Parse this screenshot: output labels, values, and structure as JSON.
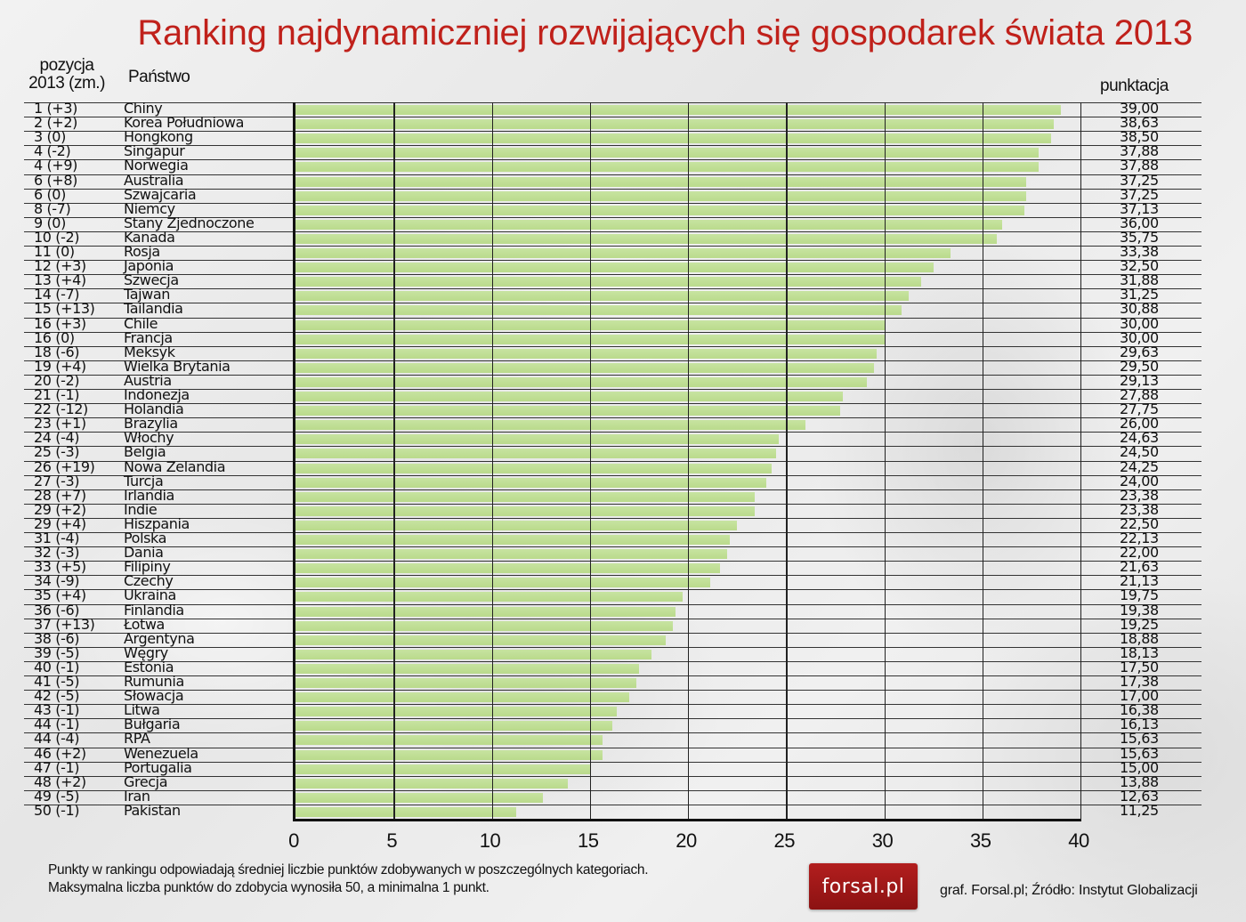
{
  "title": "Ranking najdynamiczniej rozwijających się gospodarek świata 2013",
  "headers": {
    "position_line1": "pozycja",
    "position_line2": "2013 (zm.)",
    "country": "Państwo",
    "score": "punktacja"
  },
  "colors": {
    "title": "#c0211b",
    "bar": "#bcdd8c",
    "logo_bg": "#a01818"
  },
  "chart_data": {
    "type": "bar",
    "orientation": "horizontal",
    "title": "Ranking najdynamiczniej rozwijających się gospodarek świata 2013",
    "xlabel": "",
    "ylabel": "Państwo",
    "xlim": [
      0,
      40
    ],
    "xticks": [
      0,
      5,
      10,
      15,
      20,
      25,
      30,
      35,
      40
    ],
    "grid": true,
    "legend": null,
    "categories": [
      "Chiny",
      "Korea Południowa",
      "Hongkong",
      "Singapur",
      "Norwegia",
      "Australia",
      "Szwajcaria",
      "Niemcy",
      "Stany Zjednoczone",
      "Kanada",
      "Rosja",
      "Japonia",
      "Szwecja",
      "Tajwan",
      "Tailandia",
      "Chile",
      "Francja",
      "Meksyk",
      "Wielka Brytania",
      "Austria",
      "Indonezja",
      "Holandia",
      "Brazylia",
      "Włochy",
      "Belgia",
      "Nowa Zelandia",
      "Turcja",
      "Irlandia",
      "Indie",
      "Hiszpania",
      "Polska",
      "Dania",
      "Filipiny",
      "Czechy",
      "Ukraina",
      "Finlandia",
      "Łotwa",
      "Argentyna",
      "Węgry",
      "Estonia",
      "Rumunia",
      "Słowacja",
      "Litwa",
      "Bułgaria",
      "RPA",
      "Wenezuela",
      "Portugalia",
      "Grecja",
      "Iran",
      "Pakistan"
    ],
    "values": [
      39.0,
      38.63,
      38.5,
      37.88,
      37.88,
      37.25,
      37.25,
      37.13,
      36.0,
      35.75,
      33.38,
      32.5,
      31.88,
      31.25,
      30.88,
      30.0,
      30.0,
      29.63,
      29.5,
      29.13,
      27.88,
      27.75,
      26.0,
      24.63,
      24.5,
      24.25,
      24.0,
      23.38,
      23.38,
      22.5,
      22.13,
      22.0,
      21.63,
      21.13,
      19.75,
      19.38,
      19.25,
      18.88,
      18.13,
      17.5,
      17.38,
      17.0,
      16.38,
      16.13,
      15.63,
      15.63,
      15.0,
      13.88,
      12.63,
      11.25
    ],
    "positions": [
      "1 (+3)",
      "2 (+2)",
      "3 (0)",
      "4 (-2)",
      "4 (+9)",
      "6 (+8)",
      "6 (0)",
      "8 (-7)",
      "9 (0)",
      "10 (-2)",
      "11 (0)",
      "12 (+3)",
      "13 (+4)",
      "14 (-7)",
      "15 (+13)",
      "16 (+3)",
      "16 (0)",
      "18 (-6)",
      "19 (+4)",
      "20 (-2)",
      "21 (-1)",
      "22 (-12)",
      "23 (+1)",
      "24 (-4)",
      "25 (-3)",
      "26 (+19)",
      "27 (-3)",
      "28 (+7)",
      "29 (+2)",
      "29 (+4)",
      "31 (-4)",
      "32 (-3)",
      "33 (+5)",
      "34 (-9)",
      "35 (+4)",
      "36 (-6)",
      "37 (+13)",
      "38 (-6)",
      "39 (-5)",
      "40 (-1)",
      "41 (-5)",
      "42 (-5)",
      "43 (-1)",
      "44 (-1)",
      "44 (-4)",
      "46 (+2)",
      "47 (-1)",
      "48 (+2)",
      "49 (-5)",
      "50 (-1)"
    ],
    "score_labels": [
      "39,00",
      "38,63",
      "38,50",
      "37,88",
      "37,88",
      "37,25",
      "37,25",
      "37,13",
      "36,00",
      "35,75",
      "33,38",
      "32,50",
      "31,88",
      "31,25",
      "30,88",
      "30,00",
      "30,00",
      "29,63",
      "29,50",
      "29,13",
      "27,88",
      "27,75",
      "26,00",
      "24,63",
      "24,50",
      "24,25",
      "24,00",
      "23,38",
      "23,38",
      "22,50",
      "22,13",
      "22,00",
      "21,63",
      "21,13",
      "19,75",
      "19,38",
      "19,25",
      "18,88",
      "18,13",
      "17,50",
      "17,38",
      "17,00",
      "16,38",
      "16,13",
      "15,63",
      "15,63",
      "15,00",
      "13,88",
      "12,63",
      "11,25"
    ]
  },
  "footer": {
    "note_line1": "Punkty w rankingu odpowiadają średniej liczbie punktów zdobywanych w poszczególnych kategoriach.",
    "note_line2": "Maksymalna liczba punktów do zdobycia wynosiła 50, a minimalna 1 punkt.",
    "logo": "forsal.pl",
    "source": "graf. Forsal.pl; Źródło: Instytut Globalizacji"
  }
}
